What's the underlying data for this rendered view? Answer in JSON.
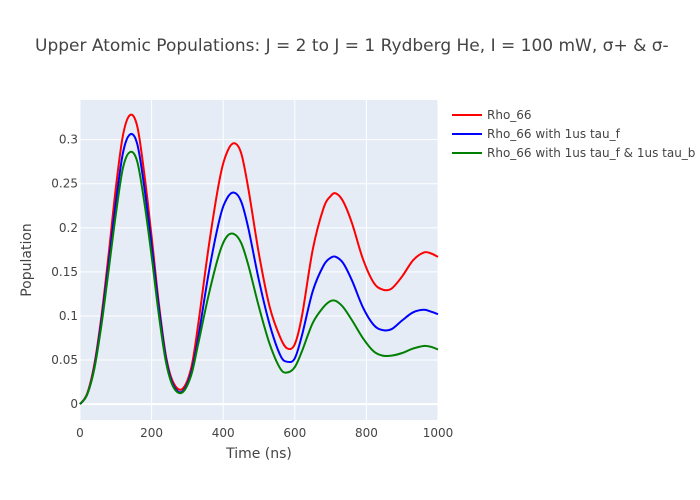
{
  "chart_data": {
    "type": "line",
    "title": "Upper Atomic Populations: J = 2 to J = 1 Rydberg He, I = 100 mW, σ+ & σ-",
    "xlabel": "Time (ns)",
    "ylabel": "Population",
    "xlim": [
      0,
      1000
    ],
    "ylim": [
      -0.018,
      0.345
    ],
    "xticks": [
      0,
      200,
      400,
      600,
      800,
      1000
    ],
    "yticks": [
      0,
      0.05,
      0.1,
      0.15,
      0.2,
      0.25,
      0.3
    ],
    "xtick_labels": [
      "0",
      "200",
      "400",
      "600",
      "800",
      "1000"
    ],
    "ytick_labels": [
      "0",
      "0.05",
      "0.1",
      "0.15",
      "0.2",
      "0.25",
      "0.3"
    ],
    "grid": true,
    "plot_background": "#E5ECF6",
    "legend_position": "top-right",
    "series": [
      {
        "name": "Rho_66",
        "color": "#FF0000",
        "points": [
          [
            0,
            0
          ],
          [
            20,
            0.012
          ],
          [
            40,
            0.045
          ],
          [
            60,
            0.1
          ],
          [
            80,
            0.17
          ],
          [
            100,
            0.245
          ],
          [
            120,
            0.305
          ],
          [
            140,
            0.328
          ],
          [
            160,
            0.315
          ],
          [
            180,
            0.26
          ],
          [
            200,
            0.19
          ],
          [
            220,
            0.115
          ],
          [
            240,
            0.055
          ],
          [
            260,
            0.025
          ],
          [
            285,
            0.017
          ],
          [
            310,
            0.04
          ],
          [
            330,
            0.09
          ],
          [
            360,
            0.18
          ],
          [
            390,
            0.255
          ],
          [
            410,
            0.285
          ],
          [
            430,
            0.296
          ],
          [
            450,
            0.285
          ],
          [
            470,
            0.245
          ],
          [
            500,
            0.17
          ],
          [
            530,
            0.11
          ],
          [
            560,
            0.075
          ],
          [
            580,
            0.063
          ],
          [
            600,
            0.068
          ],
          [
            620,
            0.1
          ],
          [
            650,
            0.175
          ],
          [
            680,
            0.222
          ],
          [
            700,
            0.236
          ],
          [
            715,
            0.239
          ],
          [
            735,
            0.23
          ],
          [
            760,
            0.205
          ],
          [
            790,
            0.165
          ],
          [
            820,
            0.138
          ],
          [
            845,
            0.13
          ],
          [
            870,
            0.131
          ],
          [
            900,
            0.145
          ],
          [
            930,
            0.163
          ],
          [
            960,
            0.172
          ],
          [
            980,
            0.171
          ],
          [
            1000,
            0.167
          ]
        ]
      },
      {
        "name": "Rho_66 with 1us tau_f",
        "color": "#0000FF",
        "points": [
          [
            0,
            0
          ],
          [
            20,
            0.011
          ],
          [
            40,
            0.042
          ],
          [
            60,
            0.095
          ],
          [
            80,
            0.16
          ],
          [
            100,
            0.228
          ],
          [
            120,
            0.285
          ],
          [
            140,
            0.306
          ],
          [
            160,
            0.295
          ],
          [
            180,
            0.245
          ],
          [
            200,
            0.18
          ],
          [
            220,
            0.11
          ],
          [
            240,
            0.052
          ],
          [
            260,
            0.022
          ],
          [
            285,
            0.014
          ],
          [
            310,
            0.035
          ],
          [
            330,
            0.075
          ],
          [
            360,
            0.15
          ],
          [
            390,
            0.21
          ],
          [
            410,
            0.233
          ],
          [
            430,
            0.24
          ],
          [
            450,
            0.23
          ],
          [
            470,
            0.2
          ],
          [
            500,
            0.14
          ],
          [
            530,
            0.09
          ],
          [
            560,
            0.055
          ],
          [
            580,
            0.048
          ],
          [
            600,
            0.052
          ],
          [
            620,
            0.078
          ],
          [
            650,
            0.128
          ],
          [
            680,
            0.157
          ],
          [
            700,
            0.166
          ],
          [
            715,
            0.167
          ],
          [
            735,
            0.16
          ],
          [
            760,
            0.14
          ],
          [
            790,
            0.11
          ],
          [
            820,
            0.09
          ],
          [
            845,
            0.084
          ],
          [
            870,
            0.085
          ],
          [
            900,
            0.095
          ],
          [
            930,
            0.104
          ],
          [
            960,
            0.107
          ],
          [
            980,
            0.105
          ],
          [
            1000,
            0.102
          ]
        ]
      },
      {
        "name": "Rho_66 with 1us tau_f & 1us tau_b",
        "color": "#008000",
        "points": [
          [
            0,
            0
          ],
          [
            20,
            0.011
          ],
          [
            40,
            0.04
          ],
          [
            60,
            0.09
          ],
          [
            80,
            0.152
          ],
          [
            100,
            0.215
          ],
          [
            120,
            0.268
          ],
          [
            140,
            0.286
          ],
          [
            160,
            0.275
          ],
          [
            180,
            0.228
          ],
          [
            200,
            0.168
          ],
          [
            220,
            0.102
          ],
          [
            240,
            0.048
          ],
          [
            260,
            0.02
          ],
          [
            285,
            0.013
          ],
          [
            310,
            0.032
          ],
          [
            330,
            0.068
          ],
          [
            360,
            0.125
          ],
          [
            390,
            0.172
          ],
          [
            410,
            0.19
          ],
          [
            430,
            0.193
          ],
          [
            450,
            0.183
          ],
          [
            470,
            0.158
          ],
          [
            500,
            0.11
          ],
          [
            530,
            0.068
          ],
          [
            560,
            0.04
          ],
          [
            580,
            0.036
          ],
          [
            600,
            0.042
          ],
          [
            620,
            0.06
          ],
          [
            650,
            0.092
          ],
          [
            680,
            0.11
          ],
          [
            700,
            0.117
          ],
          [
            715,
            0.117
          ],
          [
            735,
            0.11
          ],
          [
            760,
            0.095
          ],
          [
            790,
            0.075
          ],
          [
            820,
            0.06
          ],
          [
            845,
            0.055
          ],
          [
            870,
            0.055
          ],
          [
            900,
            0.058
          ],
          [
            930,
            0.063
          ],
          [
            960,
            0.066
          ],
          [
            980,
            0.065
          ],
          [
            1000,
            0.062
          ]
        ]
      }
    ]
  }
}
